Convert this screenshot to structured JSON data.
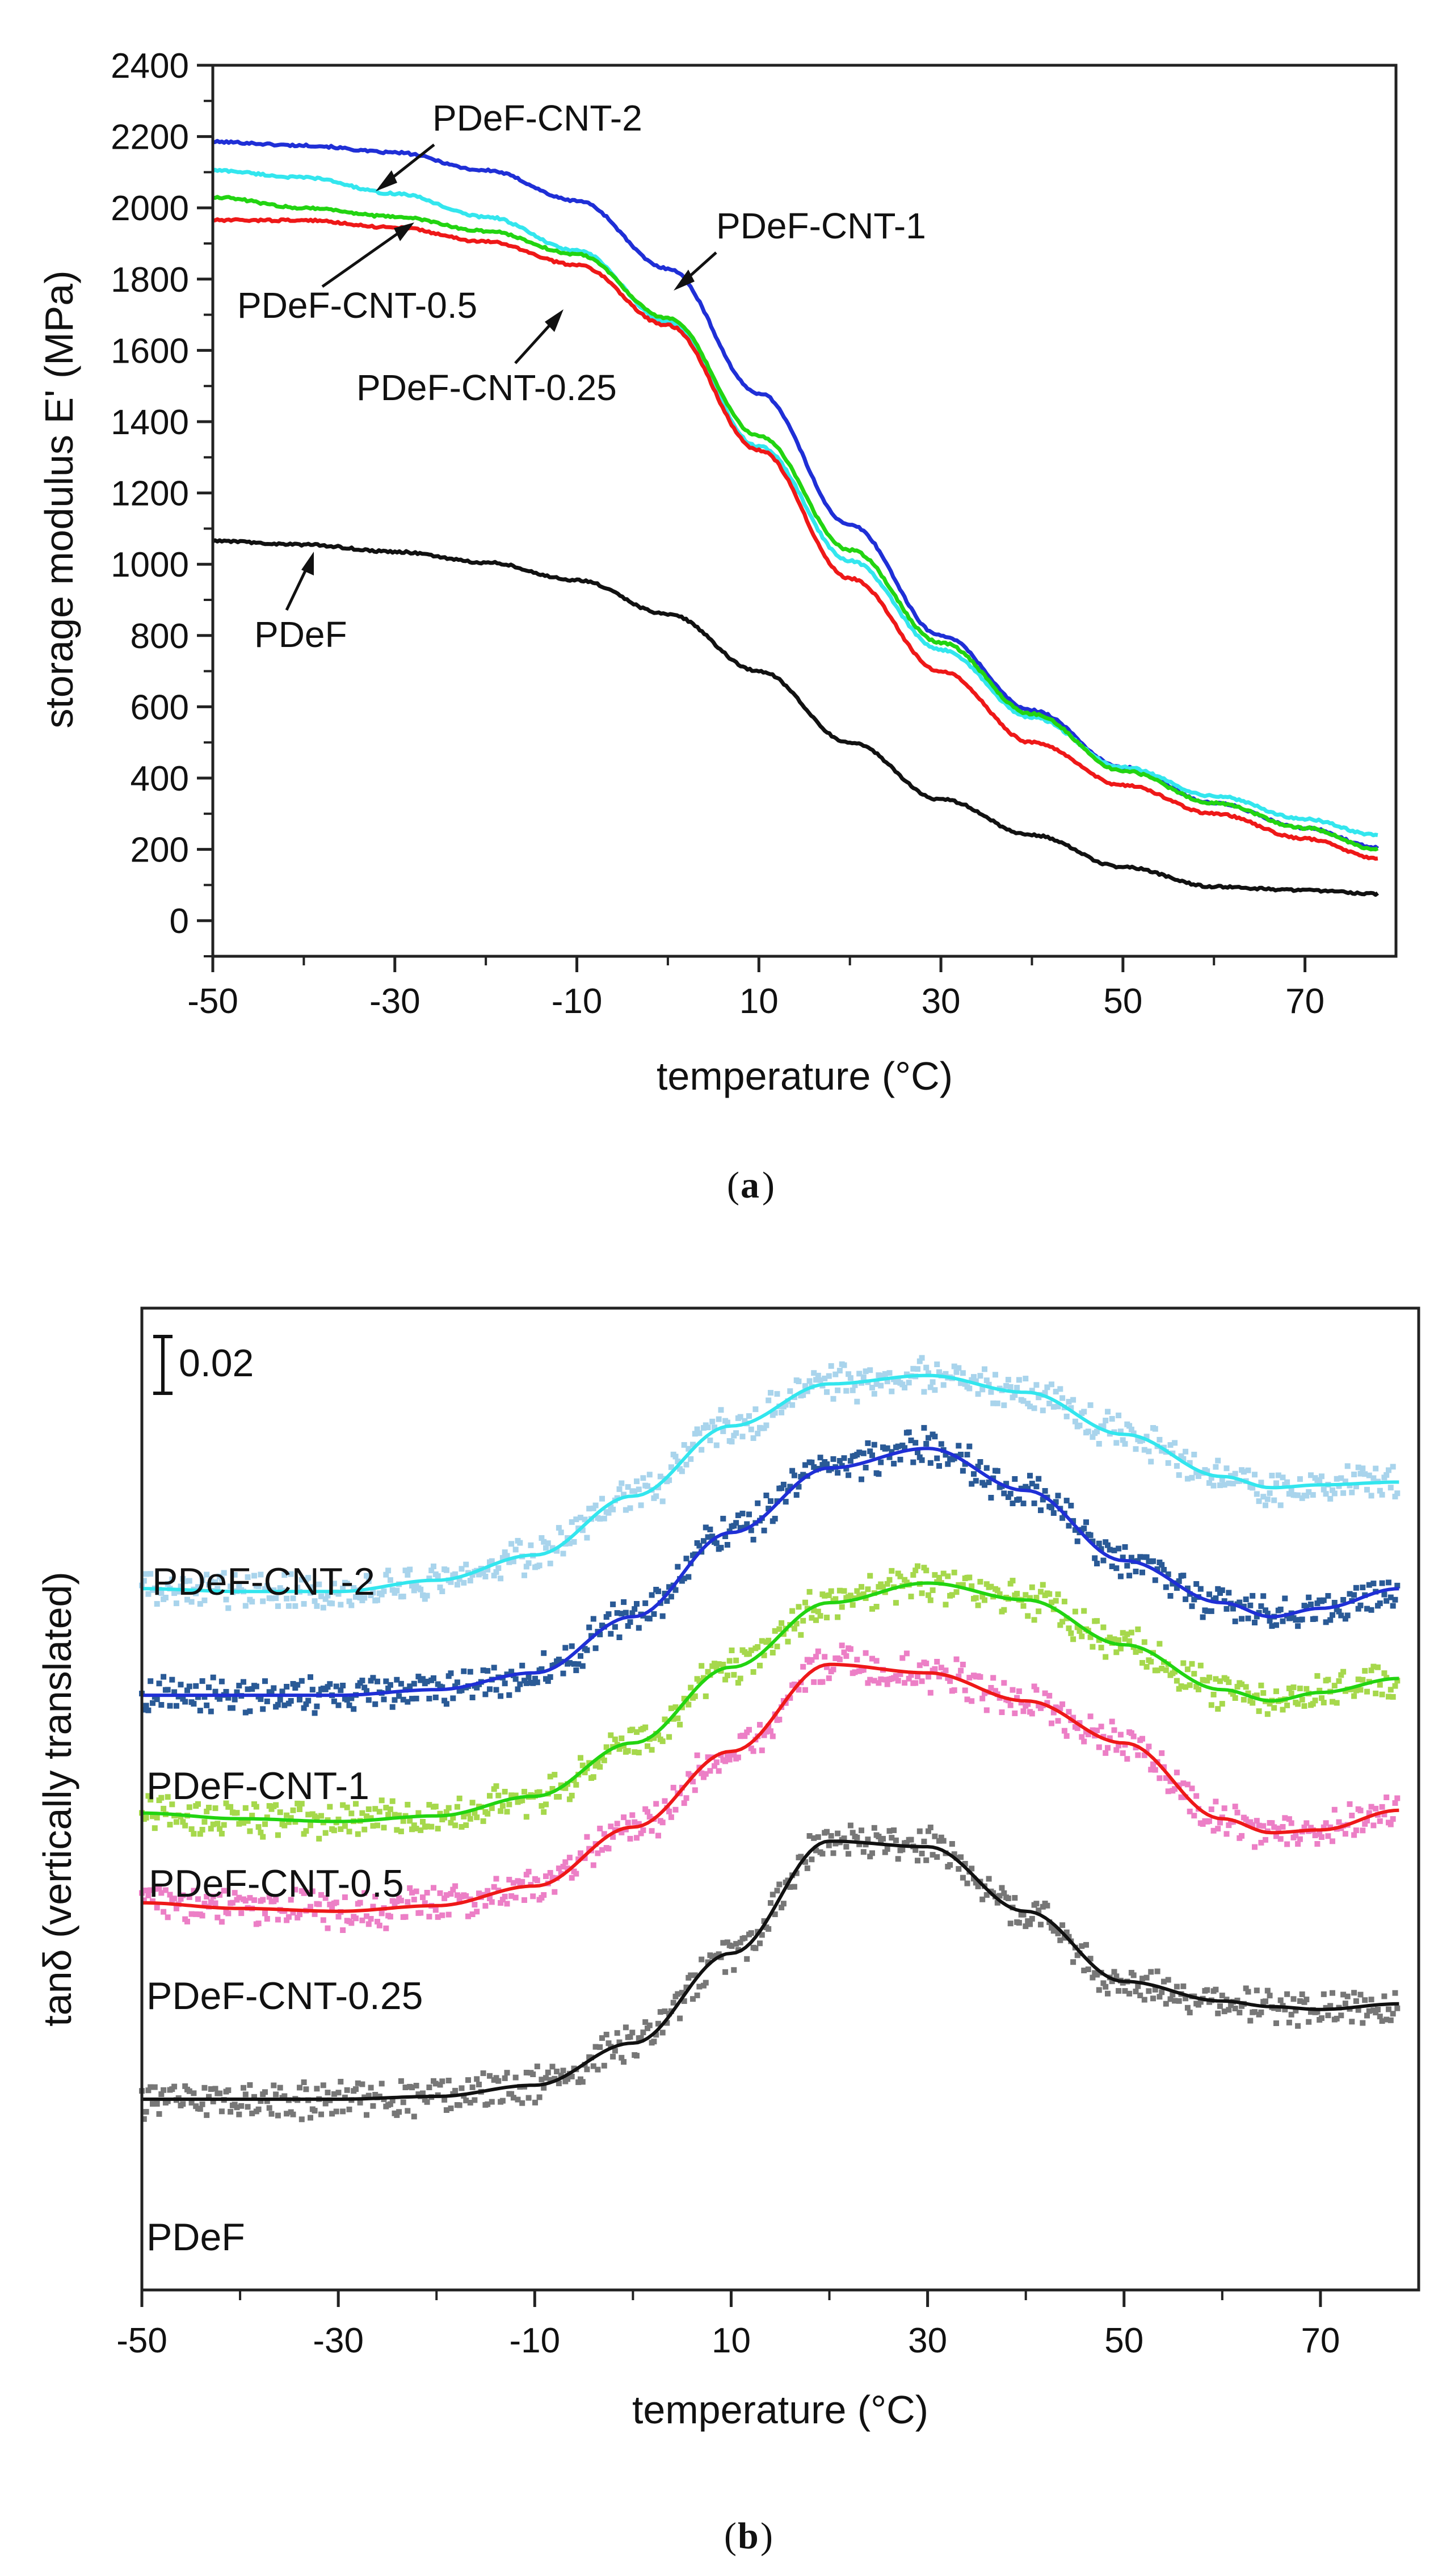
{
  "chart_data": [
    {
      "panel": "a",
      "type": "line",
      "caption": "a",
      "title": "",
      "xlabel": "temperature (°C)",
      "ylabel": "storage modulus E' (MPa)",
      "xlim": [
        -50,
        80
      ],
      "ylim": [
        -100,
        2400
      ],
      "xticks": [
        -50,
        -30,
        -10,
        10,
        30,
        50,
        70
      ],
      "yticks": [
        0,
        200,
        400,
        600,
        800,
        1000,
        1200,
        1400,
        1600,
        1800,
        2000,
        2200,
        2400
      ],
      "x": [
        -50,
        -40,
        -30,
        -20,
        -10,
        0,
        10,
        20,
        30,
        40,
        50,
        60,
        70,
        78
      ],
      "series": [
        {
          "name": "PDeF-CNT-1",
          "color": "#1f2fd6",
          "values": [
            2185,
            2175,
            2155,
            2105,
            2020,
            1830,
            1480,
            1110,
            800,
            590,
            430,
            330,
            260,
            205
          ]
        },
        {
          "name": "PDeF-CNT-2",
          "color": "#33e6ee",
          "values": [
            2105,
            2085,
            2040,
            1975,
            1880,
            1680,
            1330,
            1010,
            760,
            570,
            430,
            350,
            285,
            240
          ]
        },
        {
          "name": "PDeF-CNT-0.5",
          "color": "#22d411",
          "values": [
            2030,
            2000,
            1975,
            1935,
            1870,
            1690,
            1360,
            1040,
            780,
            580,
            420,
            330,
            260,
            200
          ]
        },
        {
          "name": "PDeF-CNT-0.25",
          "color": "#ee1818",
          "values": [
            1965,
            1965,
            1945,
            1905,
            1840,
            1670,
            1320,
            960,
            700,
            500,
            380,
            300,
            230,
            175
          ]
        },
        {
          "name": "PDeF",
          "color": "#111111",
          "values": [
            1065,
            1055,
            1035,
            1005,
            955,
            860,
            700,
            500,
            340,
            240,
            150,
            95,
            85,
            75
          ]
        }
      ],
      "annotations": [
        "PDeF-CNT-2",
        "PDeF-CNT-1",
        "PDeF-CNT-0.5",
        "PDeF-CNT-0.25",
        "PDeF"
      ]
    },
    {
      "panel": "b",
      "type": "scatter",
      "caption": "b",
      "title": "",
      "xlabel": "temperature (°C)",
      "ylabel": "tanδ (vertically translated)",
      "xlim": [
        -50,
        80
      ],
      "ylim": [
        0,
        0.35
      ],
      "xticks": [
        -50,
        -30,
        -10,
        10,
        30,
        50,
        70
      ],
      "scale_bar_label": "0.02",
      "x": [
        -50,
        -40,
        -30,
        -20,
        -10,
        0,
        10,
        20,
        30,
        40,
        50,
        60,
        65,
        70,
        78
      ],
      "series": [
        {
          "name": "PDeF-CNT-2",
          "color": "#33e6ee",
          "point_color": "#a9d4ec",
          "values": [
            0.25,
            0.249,
            0.249,
            0.253,
            0.262,
            0.283,
            0.308,
            0.323,
            0.326,
            0.32,
            0.305,
            0.29,
            0.286,
            0.287,
            0.288
          ]
        },
        {
          "name": "PDeF-CNT-1",
          "color": "#1f2fd6",
          "point_color": "#2a5a96",
          "values": [
            0.212,
            0.212,
            0.212,
            0.214,
            0.22,
            0.24,
            0.27,
            0.293,
            0.3,
            0.285,
            0.26,
            0.245,
            0.24,
            0.243,
            0.25
          ]
        },
        {
          "name": "PDeF-CNT-0.5",
          "color": "#22d411",
          "point_color": "#a6d84c",
          "values": [
            0.17,
            0.168,
            0.167,
            0.169,
            0.176,
            0.195,
            0.222,
            0.245,
            0.252,
            0.246,
            0.23,
            0.214,
            0.21,
            0.213,
            0.218
          ]
        },
        {
          "name": "PDeF-CNT-0.25",
          "color": "#ee1818",
          "point_color": "#ec7fc6",
          "values": [
            0.138,
            0.136,
            0.135,
            0.137,
            0.144,
            0.165,
            0.192,
            0.223,
            0.22,
            0.21,
            0.195,
            0.168,
            0.163,
            0.164,
            0.171
          ]
        },
        {
          "name": "PDeF",
          "color": "#111111",
          "point_color": "#777777",
          "values": [
            0.068,
            0.068,
            0.068,
            0.069,
            0.073,
            0.088,
            0.12,
            0.16,
            0.158,
            0.135,
            0.11,
            0.103,
            0.101,
            0.1,
            0.102
          ]
        }
      ]
    }
  ]
}
